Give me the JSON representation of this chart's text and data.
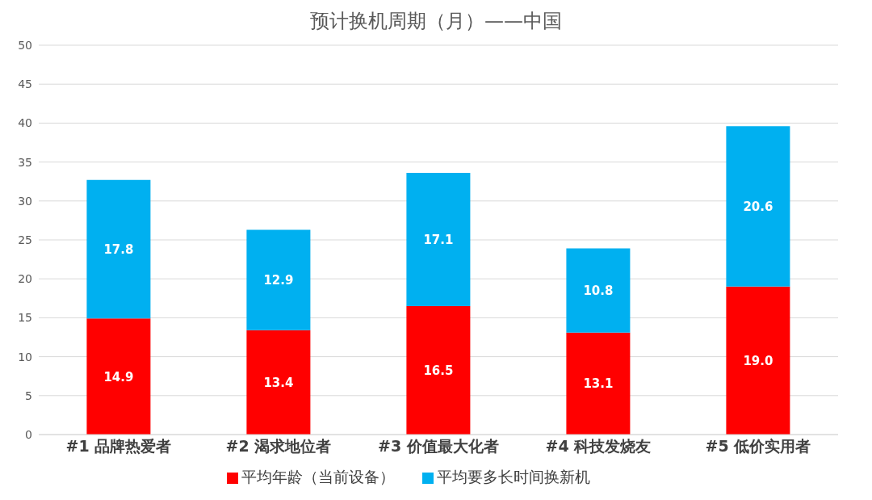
{
  "chart_data": {
    "type": "bar",
    "title": "预计换机周期（月）——中国",
    "categories": [
      "#1 品牌热爱者",
      "#2 渴求地位者",
      "#3 价值最大化者",
      "#4 科技发烧友",
      "#5 低价实用者"
    ],
    "series": [
      {
        "name": "平均年龄（当前设备）",
        "color": "#ff0000",
        "values": [
          14.9,
          13.4,
          16.5,
          13.1,
          19.0
        ],
        "value_labels": [
          "14.9",
          "13.4",
          "16.5",
          "13.1",
          "19.0"
        ]
      },
      {
        "name": "平均要多长时间换新机",
        "color": "#00b0f0",
        "values": [
          17.8,
          12.9,
          17.1,
          10.8,
          20.6
        ],
        "value_labels": [
          "17.8",
          "12.9",
          "17.1",
          "10.8",
          "20.6"
        ]
      }
    ],
    "stacked": true,
    "ylim": [
      0,
      50
    ],
    "yticks": [
      0,
      5,
      10,
      15,
      20,
      25,
      30,
      35,
      40,
      45,
      50
    ],
    "grid": "y",
    "legend": "bottom"
  }
}
